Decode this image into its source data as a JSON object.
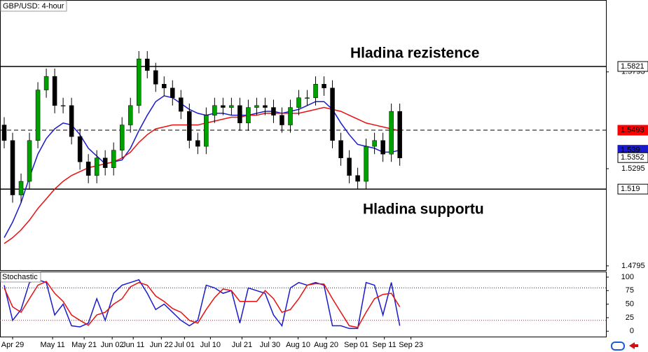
{
  "chart_data": {
    "type": "candlestick",
    "title": "GBP/USD: 4-hour",
    "annotations": [
      "Hladina rezistence",
      "Hladina supportu"
    ],
    "ylim": [
      1.4773,
      1.6163
    ],
    "yticks": [
      1.5793,
      1.5295,
      1.4795
    ],
    "xlim": [
      -0.5,
      71.5
    ],
    "xticks": [
      {
        "value": 1,
        "label": "Apr 29"
      },
      {
        "value": 5.75,
        "label": "May 11"
      },
      {
        "value": 9.5,
        "label": "May 21"
      },
      {
        "value": 12.83,
        "label": "Jun 02"
      },
      {
        "value": 15.33,
        "label": "Jun 11"
      },
      {
        "value": 18.67,
        "label": "Jun 22"
      },
      {
        "value": 21.42,
        "label": "Jul 01"
      },
      {
        "value": 24.5,
        "label": "Jul 10"
      },
      {
        "value": 28.25,
        "label": "Jul 21"
      },
      {
        "value": 31.58,
        "label": "Jul 30"
      },
      {
        "value": 34.92,
        "label": "Aug 10"
      },
      {
        "value": 38.25,
        "label": "Aug 20"
      },
      {
        "value": 41.83,
        "label": "Sep 01"
      },
      {
        "value": 45.17,
        "label": "Sep 11"
      },
      {
        "value": 48.33,
        "label": "Sep 23"
      }
    ],
    "up_color": "#00a000",
    "down_color": "#000000",
    "open": [
      1.552,
      1.544,
      1.516,
      1.523,
      1.544,
      1.57,
      1.577,
      1.562,
      1.562,
      1.546,
      1.533,
      1.526,
      1.535,
      1.53,
      1.539,
      1.552,
      1.562,
      1.586,
      1.58,
      1.573,
      1.571,
      1.566,
      1.559,
      1.544,
      1.541,
      1.557,
      1.562,
      1.561,
      1.562,
      1.553,
      1.561,
      1.562,
      1.561,
      1.557,
      1.552,
      1.561,
      1.566,
      1.566,
      1.573,
      1.571,
      1.544,
      1.535,
      1.526,
      1.523,
      1.541,
      1.544,
      1.537,
      1.559
    ],
    "high": [
      1.556,
      1.548,
      1.527,
      1.548,
      1.574,
      1.581,
      1.581,
      1.566,
      1.566,
      1.55,
      1.537,
      1.539,
      1.539,
      1.543,
      1.556,
      1.566,
      1.59,
      1.59,
      1.584,
      1.577,
      1.575,
      1.57,
      1.563,
      1.548,
      1.561,
      1.566,
      1.566,
      1.566,
      1.566,
      1.565,
      1.566,
      1.566,
      1.565,
      1.561,
      1.565,
      1.57,
      1.57,
      1.577,
      1.577,
      1.575,
      1.548,
      1.539,
      1.53,
      1.545,
      1.548,
      1.548,
      1.563,
      1.563
    ],
    "low": [
      1.54,
      1.512,
      1.512,
      1.519,
      1.54,
      1.566,
      1.558,
      1.558,
      1.542,
      1.529,
      1.522,
      1.522,
      1.526,
      1.526,
      1.535,
      1.548,
      1.558,
      1.576,
      1.569,
      1.567,
      1.562,
      1.555,
      1.54,
      1.537,
      1.537,
      1.553,
      1.557,
      1.557,
      1.549,
      1.549,
      1.557,
      1.557,
      1.553,
      1.548,
      1.548,
      1.557,
      1.562,
      1.562,
      1.567,
      1.54,
      1.531,
      1.522,
      1.519,
      1.519,
      1.537,
      1.533,
      1.533,
      1.531
    ],
    "close": [
      1.544,
      1.516,
      1.523,
      1.544,
      1.57,
      1.577,
      1.562,
      1.562,
      1.546,
      1.533,
      1.526,
      1.535,
      1.53,
      1.539,
      1.552,
      1.562,
      1.586,
      1.58,
      1.573,
      1.571,
      1.566,
      1.559,
      1.544,
      1.541,
      1.557,
      1.562,
      1.561,
      1.562,
      1.553,
      1.561,
      1.562,
      1.561,
      1.557,
      1.552,
      1.561,
      1.566,
      1.566,
      1.573,
      1.571,
      1.544,
      1.535,
      1.526,
      1.523,
      1.541,
      1.544,
      1.537,
      1.559,
      1.535
    ],
    "series": [
      {
        "color": "#1a1acc",
        "values": [
          1.494,
          1.502,
          1.512,
          1.525,
          1.537,
          1.545,
          1.55,
          1.553,
          1.552,
          1.547,
          1.54,
          1.536,
          1.532,
          1.533,
          1.534,
          1.54,
          1.549,
          1.557,
          1.564,
          1.567,
          1.566,
          1.563,
          1.56,
          1.558,
          1.557,
          1.558,
          1.558,
          1.557,
          1.557,
          1.557,
          1.558,
          1.559,
          1.559,
          1.558,
          1.559,
          1.56,
          1.562,
          1.564,
          1.564,
          1.56,
          1.553,
          1.547,
          1.542,
          1.541,
          1.54,
          1.538,
          1.538,
          1.539
        ]
      },
      {
        "color": "#e81010",
        "values": [
          1.491,
          1.494,
          1.498,
          1.503,
          1.509,
          1.514,
          1.519,
          1.523,
          1.526,
          1.528,
          1.53,
          1.531,
          1.532,
          1.533,
          1.535,
          1.538,
          1.543,
          1.547,
          1.55,
          1.551,
          1.552,
          1.552,
          1.552,
          1.552,
          1.553,
          1.554,
          1.555,
          1.556,
          1.556,
          1.557,
          1.557,
          1.558,
          1.558,
          1.558,
          1.558,
          1.558,
          1.559,
          1.56,
          1.561,
          1.56,
          1.559,
          1.557,
          1.555,
          1.553,
          1.552,
          1.551,
          1.55,
          1.549
        ]
      }
    ],
    "levels": [
      {
        "value": 1.5821,
        "color": "#000000",
        "dashed": false,
        "label_bg": "#ffffff"
      },
      {
        "value": 1.5493,
        "color": "#000000",
        "dashed": true,
        "label_bg": "#ff0000"
      },
      {
        "value": 1.539,
        "label_bg": "#1a1acc"
      },
      {
        "value": 1.5352,
        "label_bg": "#ffffff"
      },
      {
        "value": 1.519,
        "color": "#000000",
        "dashed": false,
        "label_bg": "#ffffff"
      }
    ],
    "stochastic": {
      "title": "Stochastic",
      "ylim": [
        -10,
        109
      ],
      "yticks": [
        0,
        25,
        50,
        75,
        100
      ],
      "levels": [
        {
          "value": 80,
          "color": "#1a1acc"
        },
        {
          "value": 20,
          "color": "#e81010"
        }
      ],
      "series": [
        {
          "color": "#1a1acc",
          "values": [
            85,
            20,
            40,
            90,
            95,
            90,
            30,
            50,
            10,
            8,
            15,
            60,
            20,
            70,
            85,
            90,
            95,
            70,
            40,
            50,
            35,
            20,
            10,
            20,
            85,
            80,
            70,
            75,
            15,
            80,
            75,
            70,
            30,
            10,
            80,
            90,
            85,
            90,
            85,
            10,
            10,
            5,
            5,
            90,
            85,
            30,
            90,
            10
          ]
        },
        {
          "color": "#e81010",
          "values": [
            80,
            45,
            35,
            60,
            85,
            92,
            70,
            55,
            30,
            20,
            11,
            30,
            35,
            50,
            60,
            82,
            90,
            85,
            65,
            55,
            42,
            35,
            20,
            15,
            40,
            62,
            78,
            75,
            55,
            55,
            55,
            75,
            60,
            35,
            40,
            60,
            85,
            88,
            87,
            60,
            35,
            10,
            7,
            35,
            60,
            68,
            70,
            45
          ]
        }
      ]
    }
  }
}
